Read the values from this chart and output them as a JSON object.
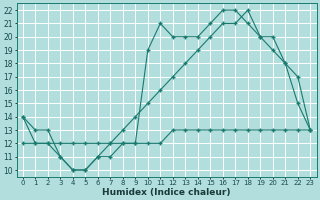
{
  "xlabel": "Humidex (Indice chaleur)",
  "background_color": "#b2dede",
  "grid_color": "#c8e8e8",
  "line_color": "#1a7a6e",
  "xlim": [
    -0.5,
    23.5
  ],
  "ylim": [
    9.5,
    22.5
  ],
  "xticks": [
    0,
    1,
    2,
    3,
    4,
    5,
    6,
    7,
    8,
    9,
    10,
    11,
    12,
    13,
    14,
    15,
    16,
    17,
    18,
    19,
    20,
    21,
    22,
    23
  ],
  "yticks": [
    10,
    11,
    12,
    13,
    14,
    15,
    16,
    17,
    18,
    19,
    20,
    21,
    22
  ],
  "line1_x": [
    0,
    1,
    2,
    3,
    4,
    5,
    6,
    7,
    8,
    9,
    10,
    11,
    12,
    13,
    14,
    15,
    16,
    17,
    18,
    19,
    20,
    21,
    22,
    23
  ],
  "line1_y": [
    14,
    13,
    13,
    11,
    10,
    10,
    11,
    11,
    12,
    12,
    19,
    21,
    20,
    20,
    20,
    21,
    22,
    22,
    21,
    20,
    20,
    18,
    15,
    13
  ],
  "line2_x": [
    0,
    1,
    2,
    3,
    4,
    5,
    6,
    7,
    8,
    9,
    10,
    11,
    12,
    13,
    14,
    15,
    16,
    17,
    18,
    19,
    20,
    21,
    22,
    23
  ],
  "line2_y": [
    14,
    12,
    12,
    11,
    10,
    10,
    11,
    12,
    13,
    14,
    15,
    16,
    17,
    18,
    19,
    20,
    21,
    21,
    22,
    20,
    19,
    18,
    17,
    13
  ],
  "line3_x": [
    0,
    1,
    2,
    3,
    4,
    5,
    6,
    7,
    8,
    9,
    10,
    11,
    12,
    13,
    14,
    15,
    16,
    17,
    18,
    19,
    20,
    21,
    22,
    23
  ],
  "line3_y": [
    12,
    12,
    12,
    12,
    12,
    12,
    12,
    12,
    12,
    12,
    12,
    12,
    13,
    13,
    13,
    13,
    13,
    13,
    13,
    13,
    13,
    13,
    13,
    13
  ]
}
